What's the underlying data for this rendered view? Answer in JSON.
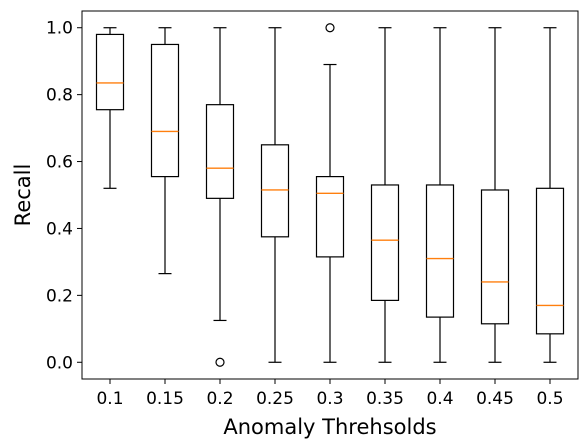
{
  "chart_data": {
    "type": "box",
    "xlabel": "Anomaly Threhsolds",
    "ylabel": "Recall",
    "ylim": [
      -0.05,
      1.05
    ],
    "yticks": [
      0.0,
      0.2,
      0.4,
      0.6,
      0.8,
      1.0
    ],
    "ytick_labels": [
      "0.0",
      "0.2",
      "0.4",
      "0.6",
      "0.8",
      "1.0"
    ],
    "grid": false,
    "categories": [
      "0.1",
      "0.15",
      "0.2",
      "0.25",
      "0.3",
      "0.35",
      "0.4",
      "0.45",
      "0.5"
    ],
    "boxes": [
      {
        "whisker_low": 0.52,
        "q1": 0.755,
        "median": 0.835,
        "q3": 0.98,
        "whisker_high": 1.0,
        "outliers": []
      },
      {
        "whisker_low": 0.265,
        "q1": 0.555,
        "median": 0.69,
        "q3": 0.95,
        "whisker_high": 1.0,
        "outliers": []
      },
      {
        "whisker_low": 0.125,
        "q1": 0.49,
        "median": 0.58,
        "q3": 0.77,
        "whisker_high": 1.0,
        "outliers": [
          0.0
        ]
      },
      {
        "whisker_low": 0.0,
        "q1": 0.375,
        "median": 0.515,
        "q3": 0.65,
        "whisker_high": 1.0,
        "outliers": []
      },
      {
        "whisker_low": 0.0,
        "q1": 0.315,
        "median": 0.505,
        "q3": 0.555,
        "whisker_high": 0.89,
        "outliers": [
          1.0
        ]
      },
      {
        "whisker_low": 0.0,
        "q1": 0.185,
        "median": 0.365,
        "q3": 0.53,
        "whisker_high": 1.0,
        "outliers": []
      },
      {
        "whisker_low": 0.0,
        "q1": 0.135,
        "median": 0.31,
        "q3": 0.53,
        "whisker_high": 1.0,
        "outliers": []
      },
      {
        "whisker_low": 0.0,
        "q1": 0.115,
        "median": 0.24,
        "q3": 0.515,
        "whisker_high": 1.0,
        "outliers": []
      },
      {
        "whisker_low": 0.0,
        "q1": 0.085,
        "median": 0.17,
        "q3": 0.52,
        "whisker_high": 1.0,
        "outliers": []
      }
    ],
    "colors": {
      "box": "#000000",
      "median": "#ff7f0e"
    }
  }
}
